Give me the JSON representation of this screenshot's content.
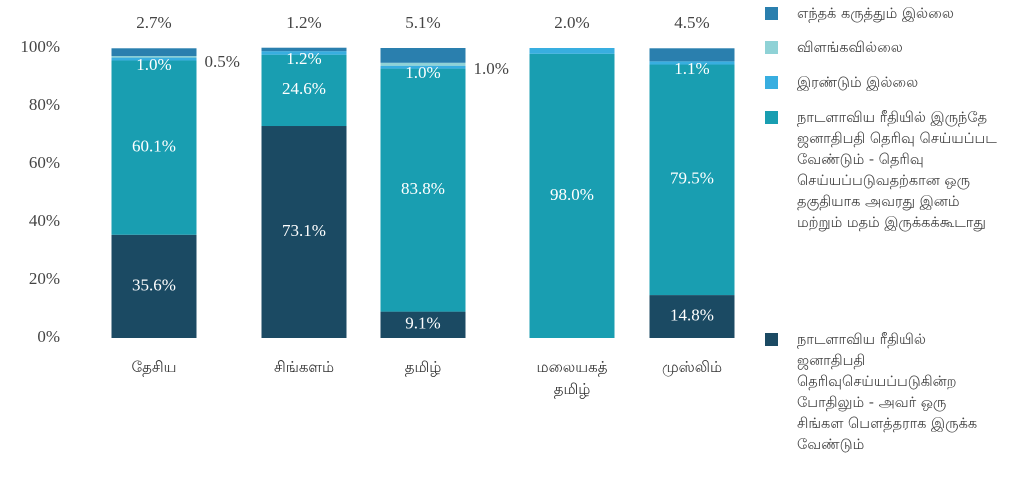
{
  "chart_data": {
    "type": "stacked_bar",
    "categories": [
      "தேசிய",
      "சிங்களம்",
      "தமிழ்",
      "மலையகத் தமிழ்",
      "முஸ்லிம்"
    ],
    "ylim": [
      0,
      100
    ],
    "yticks": [
      {
        "value": 0,
        "label": "0%"
      },
      {
        "value": 20,
        "label": "20%"
      },
      {
        "value": 40,
        "label": "40%"
      },
      {
        "value": 60,
        "label": "60%"
      },
      {
        "value": 80,
        "label": "80%"
      },
      {
        "value": 100,
        "label": "100%"
      }
    ],
    "legend": "right",
    "series": [
      {
        "name": "நாடளாவிய ரீதியில் ஜனாதிபதி தெரிவுசெய்யப்படுகின்ற போதிலும் - அவர் ஒரு சிங்கள பௌத்தராக இருக்க வேண்டும்",
        "color": "#1b4a63",
        "values": [
          35.6,
          73.1,
          9.1,
          null,
          14.8
        ],
        "value_labels": [
          "35.6%",
          "73.1%",
          "9.1%",
          null,
          "14.8%"
        ]
      },
      {
        "name": "நாடளாவிய ரீதியில் இருந்தே ஜனாதிபதி தெரிவு செய்யப்பட வேண்டும் - தெரிவு செய்யப்படுவதற்கான ஒரு தகுதியாக அவரது இனம் மற்றும் மதம் இருக்கக்கூடாது",
        "color": "#199eb1",
        "values": [
          60.1,
          24.6,
          83.8,
          98.0,
          79.5
        ],
        "value_labels": [
          "60.1%",
          "24.6%",
          "83.8%",
          "98.0%",
          "79.5%"
        ]
      },
      {
        "name": "இரண்டும் இல்லை",
        "color": "#38aee0",
        "values": [
          1.0,
          1.2,
          1.0,
          2.0,
          1.1
        ],
        "value_labels": [
          "1.0%",
          "1.2%",
          "1.0%",
          "2.0%",
          "1.1%"
        ]
      },
      {
        "name": "விளங்கவில்லை",
        "color": "#8fd2d6",
        "values": [
          0.5,
          null,
          1.0,
          null,
          null
        ],
        "value_labels": [
          "0.5%",
          null,
          "1.0%",
          null,
          null
        ]
      },
      {
        "name": "எந்தக் கருத்தும் இல்லை",
        "color": "#2a7fae",
        "values": [
          2.7,
          1.2,
          5.1,
          null,
          4.5
        ],
        "value_labels": [
          "2.7%",
          "1.2%",
          "5.1%",
          null,
          "4.5%"
        ]
      }
    ]
  }
}
